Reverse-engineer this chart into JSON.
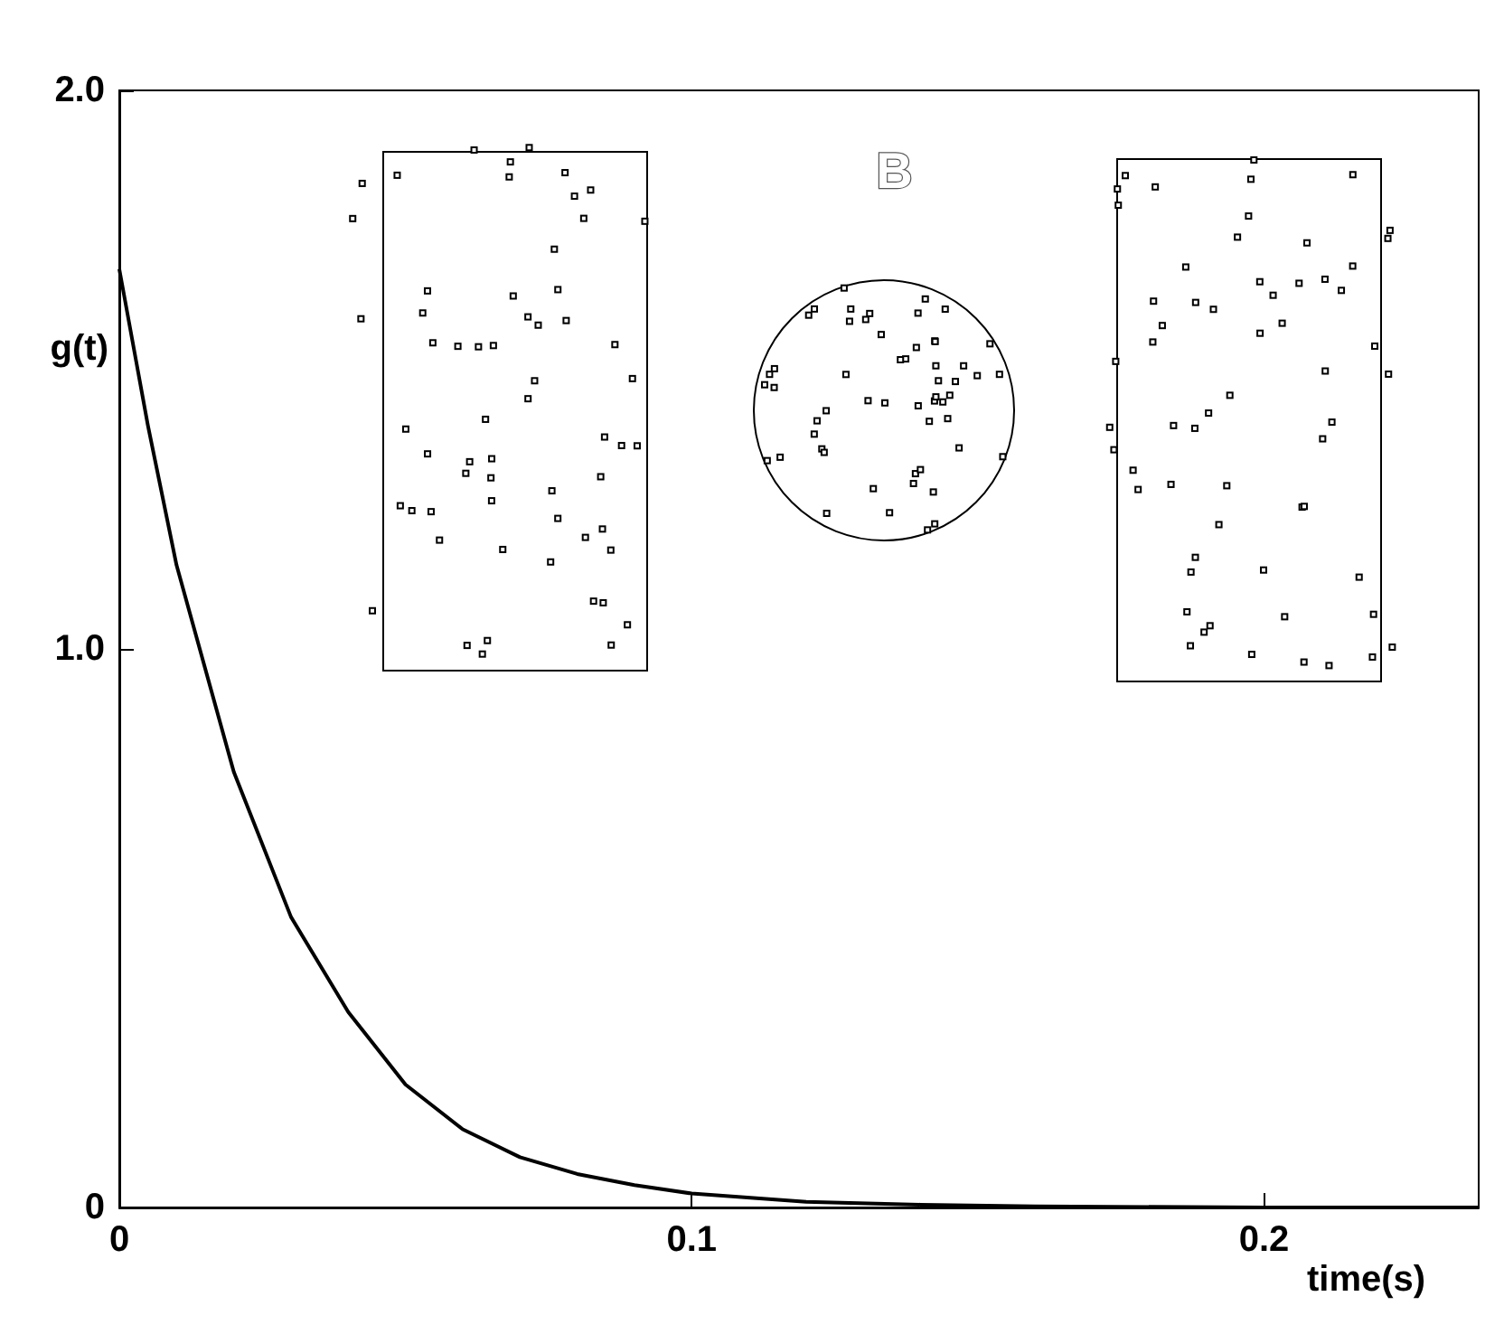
{
  "chart_data": {
    "type": "line",
    "xlabel": "time(s)",
    "ylabel": "g(t)",
    "annotations": [
      "B"
    ],
    "x": [
      0,
      0.005,
      0.01,
      0.02,
      0.03,
      0.04,
      0.05,
      0.06,
      0.07,
      0.08,
      0.09,
      0.1,
      0.12,
      0.14,
      0.16,
      0.2,
      0.2375
    ],
    "series": [
      {
        "color": "#000000",
        "values": [
          1.68,
          1.4,
          1.15,
          0.78,
          0.52,
          0.35,
          0.22,
          0.14,
          0.09,
          0.06,
          0.04,
          0.025,
          0.01,
          0.005,
          0.002,
          0,
          0
        ]
      }
    ],
    "xlim": [
      0,
      0.2375
    ],
    "xticks": [
      0,
      0.1,
      0.2
    ],
    "ylim": [
      0,
      2
    ],
    "yticks": [
      0,
      {
        "value": 1,
        "label": "1.0"
      },
      {
        "value": 2,
        "label": "2.0"
      }
    ],
    "grid": false,
    "marker": "none",
    "line_style": "solid"
  }
}
